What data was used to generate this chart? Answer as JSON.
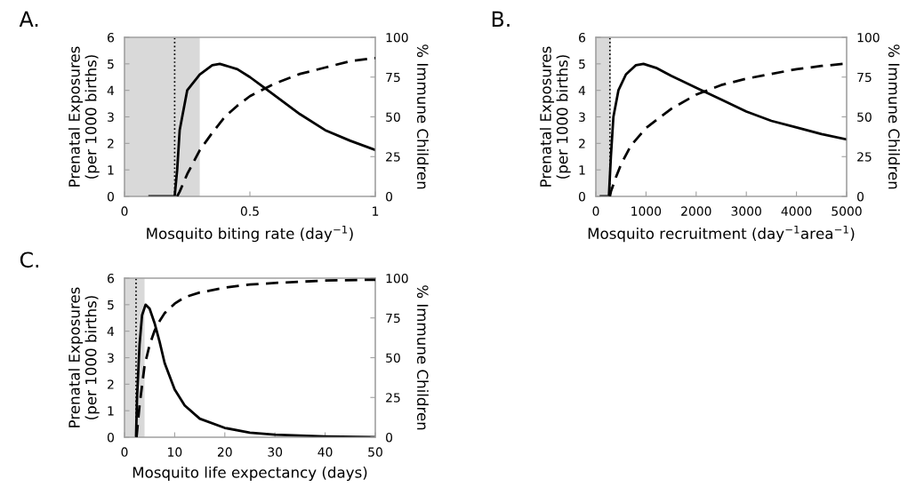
{
  "chart_data": [
    {
      "type": "line",
      "title": "A.",
      "xlabel": "Mosquito biting rate (day$^{−1}$)",
      "ylabel": "Prenatal Exposures\n(per 1000 births)",
      "y2label": "% Immune Children",
      "xlim": [
        0,
        1
      ],
      "xticks": [
        0,
        0.5,
        1
      ],
      "ylim": [
        0,
        6
      ],
      "yticks": [
        0,
        1,
        2,
        3,
        4,
        5,
        6
      ],
      "y2lim": [
        0,
        100
      ],
      "y2ticks": [
        0,
        25,
        50,
        75,
        100
      ],
      "grid": false,
      "legend": false,
      "bands": [
        {
          "axis": "x",
          "from": 0,
          "to": 0.3,
          "color": "#d9d9d9"
        }
      ],
      "ref_lines": [
        {
          "axis": "x",
          "value": 0.2,
          "line_style": "dotted",
          "color": "#000000"
        }
      ],
      "series": [
        {
          "color": "#000000",
          "line_style": "solid",
          "x": [
            0.1,
            0.2,
            0.21,
            0.22,
            0.25,
            0.3,
            0.35,
            0.38,
            0.45,
            0.5,
            0.55,
            0.6,
            0.7,
            0.8,
            0.9,
            1.0
          ],
          "values": [
            0,
            0,
            1,
            2.5,
            4,
            4.6,
            4.95,
            5.0,
            4.8,
            4.5,
            4.15,
            3.8,
            3.1,
            2.5,
            2.1,
            1.75
          ]
        },
        {
          "color": "#000000",
          "line_style": "dashed",
          "axis": "y2",
          "x": [
            0.21,
            0.22,
            0.25,
            0.3,
            0.35,
            0.4,
            0.45,
            0.5,
            0.55,
            0.6,
            0.7,
            0.8,
            0.9,
            1.0
          ],
          "values": [
            0,
            3,
            14,
            29,
            40,
            50,
            57,
            63,
            67,
            71,
            77,
            81,
            85,
            87
          ]
        }
      ]
    },
    {
      "type": "line",
      "title": "B.",
      "xlabel": "Mosquito recruitment (day$^{−1}$area$^{−1}$)",
      "ylabel": "Prenatal Exposures\n(per 1000 births)",
      "y2label": "% Immune Children",
      "xlim": [
        0,
        5000
      ],
      "xticks": [
        0,
        1000,
        2000,
        3000,
        4000,
        5000
      ],
      "ylim": [
        0,
        6
      ],
      "yticks": [
        0,
        1,
        2,
        3,
        4,
        5,
        6
      ],
      "y2lim": [
        0,
        100
      ],
      "y2ticks": [
        0,
        25,
        50,
        75,
        100
      ],
      "grid": false,
      "legend": false,
      "bands": [
        {
          "axis": "x",
          "from": 0,
          "to": 300,
          "color": "#d9d9d9"
        }
      ],
      "ref_lines": [
        {
          "axis": "x",
          "value": 280,
          "line_style": "dotted",
          "color": "#000000"
        }
      ],
      "series": [
        {
          "color": "#000000",
          "line_style": "solid",
          "x": [
            100,
            260,
            300,
            350,
            450,
            600,
            800,
            950,
            1200,
            1500,
            2000,
            2500,
            3000,
            3500,
            4000,
            4500,
            5000
          ],
          "values": [
            0,
            0,
            1.5,
            3,
            4,
            4.6,
            4.95,
            5.0,
            4.85,
            4.55,
            4.1,
            3.65,
            3.2,
            2.85,
            2.6,
            2.35,
            2.15
          ]
        },
        {
          "color": "#000000",
          "line_style": "dashed",
          "axis": "y2",
          "x": [
            280,
            300,
            400,
            500,
            700,
            1000,
            1500,
            2000,
            2500,
            3000,
            3500,
            4000,
            4500,
            5000
          ],
          "values": [
            0,
            3,
            12,
            20,
            32,
            43,
            55,
            64,
            70,
            74,
            77,
            80,
            82,
            83.5
          ]
        }
      ]
    },
    {
      "type": "line",
      "title": "C.",
      "xlabel": "Mosquito life expectancy (days)",
      "ylabel": "Prenatal Exposures\n(per 1000 births)",
      "y2label": "% Immune Children",
      "xlim": [
        0,
        50
      ],
      "xticks": [
        0,
        10,
        20,
        30,
        40,
        50
      ],
      "ylim": [
        0,
        6
      ],
      "yticks": [
        0,
        1,
        2,
        3,
        4,
        5,
        6
      ],
      "y2lim": [
        0,
        100
      ],
      "y2ticks": [
        0,
        25,
        50,
        75,
        100
      ],
      "grid": false,
      "legend": false,
      "bands": [
        {
          "axis": "x",
          "from": 0,
          "to": 4,
          "color": "#d9d9d9"
        }
      ],
      "ref_lines": [
        {
          "axis": "x",
          "value": 2.3,
          "line_style": "dotted",
          "color": "#000000"
        }
      ],
      "series": [
        {
          "color": "#000000",
          "line_style": "solid",
          "x": [
            2.3,
            2.5,
            3,
            3.5,
            4.2,
            5,
            6,
            7,
            8,
            10,
            12,
            15,
            20,
            25,
            30,
            40,
            50
          ],
          "values": [
            0,
            1.5,
            3.5,
            4.6,
            5.0,
            4.85,
            4.3,
            3.6,
            2.8,
            1.8,
            1.2,
            0.7,
            0.35,
            0.17,
            0.1,
            0.03,
            0
          ]
        },
        {
          "color": "#000000",
          "line_style": "dashed",
          "axis": "y2",
          "x": [
            2.4,
            3,
            4,
            5,
            6,
            7,
            8,
            10,
            12,
            15,
            20,
            25,
            30,
            40,
            50
          ],
          "values": [
            0,
            20,
            45,
            58,
            67,
            73,
            78,
            84,
            88,
            91,
            94,
            96,
            97,
            98.5,
            99
          ]
        }
      ]
    }
  ]
}
